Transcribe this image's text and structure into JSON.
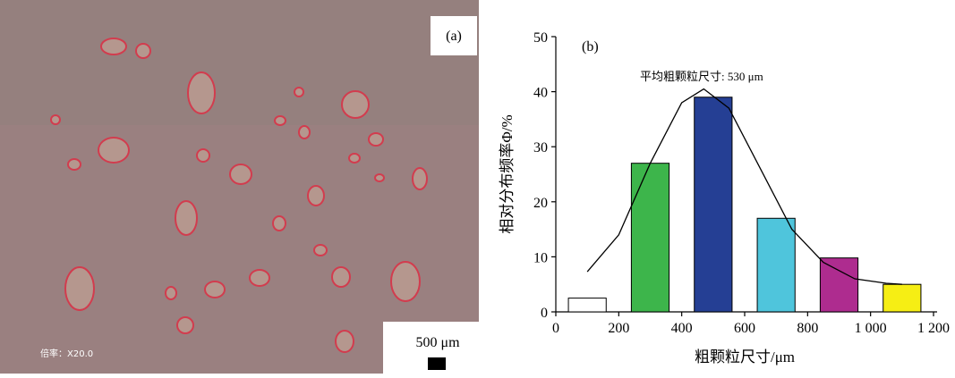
{
  "micrograph": {
    "label": "(a)",
    "scale_bar": "500 μm",
    "magnification": "倍率：X20.0"
  },
  "chart_data": {
    "type": "bar",
    "panel_label": "(b)",
    "annotation": "平均粗颗粒尺寸: 530 μm",
    "x_label": "粗颗粒尺寸/μm",
    "y_label": "相对分布频率Φ/%",
    "x": [
      100,
      300,
      500,
      700,
      900,
      1100
    ],
    "values": [
      2.5,
      27,
      39,
      17,
      9.8,
      5
    ],
    "colors": [
      "#ffffff",
      "#3db54b",
      "#253f94",
      "#4fc5dc",
      "#ae2c8f",
      "#f6ee14"
    ],
    "curve": {
      "x": [
        100,
        200,
        300,
        400,
        470,
        550,
        650,
        750,
        850,
        950,
        1050,
        1100
      ],
      "y": [
        7.3,
        14,
        27,
        38,
        40.5,
        37,
        26,
        15,
        9,
        6,
        5.2,
        5
      ]
    },
    "xlim": [
      0,
      1200
    ],
    "ylim": [
      0,
      50
    ],
    "xticks": [
      0,
      200,
      400,
      600,
      800,
      {
        "value": 1000,
        "label": "1 000"
      },
      {
        "value": 1200,
        "label": "1 200"
      }
    ],
    "yticks": [
      0,
      10,
      20,
      30,
      40,
      50
    ]
  }
}
